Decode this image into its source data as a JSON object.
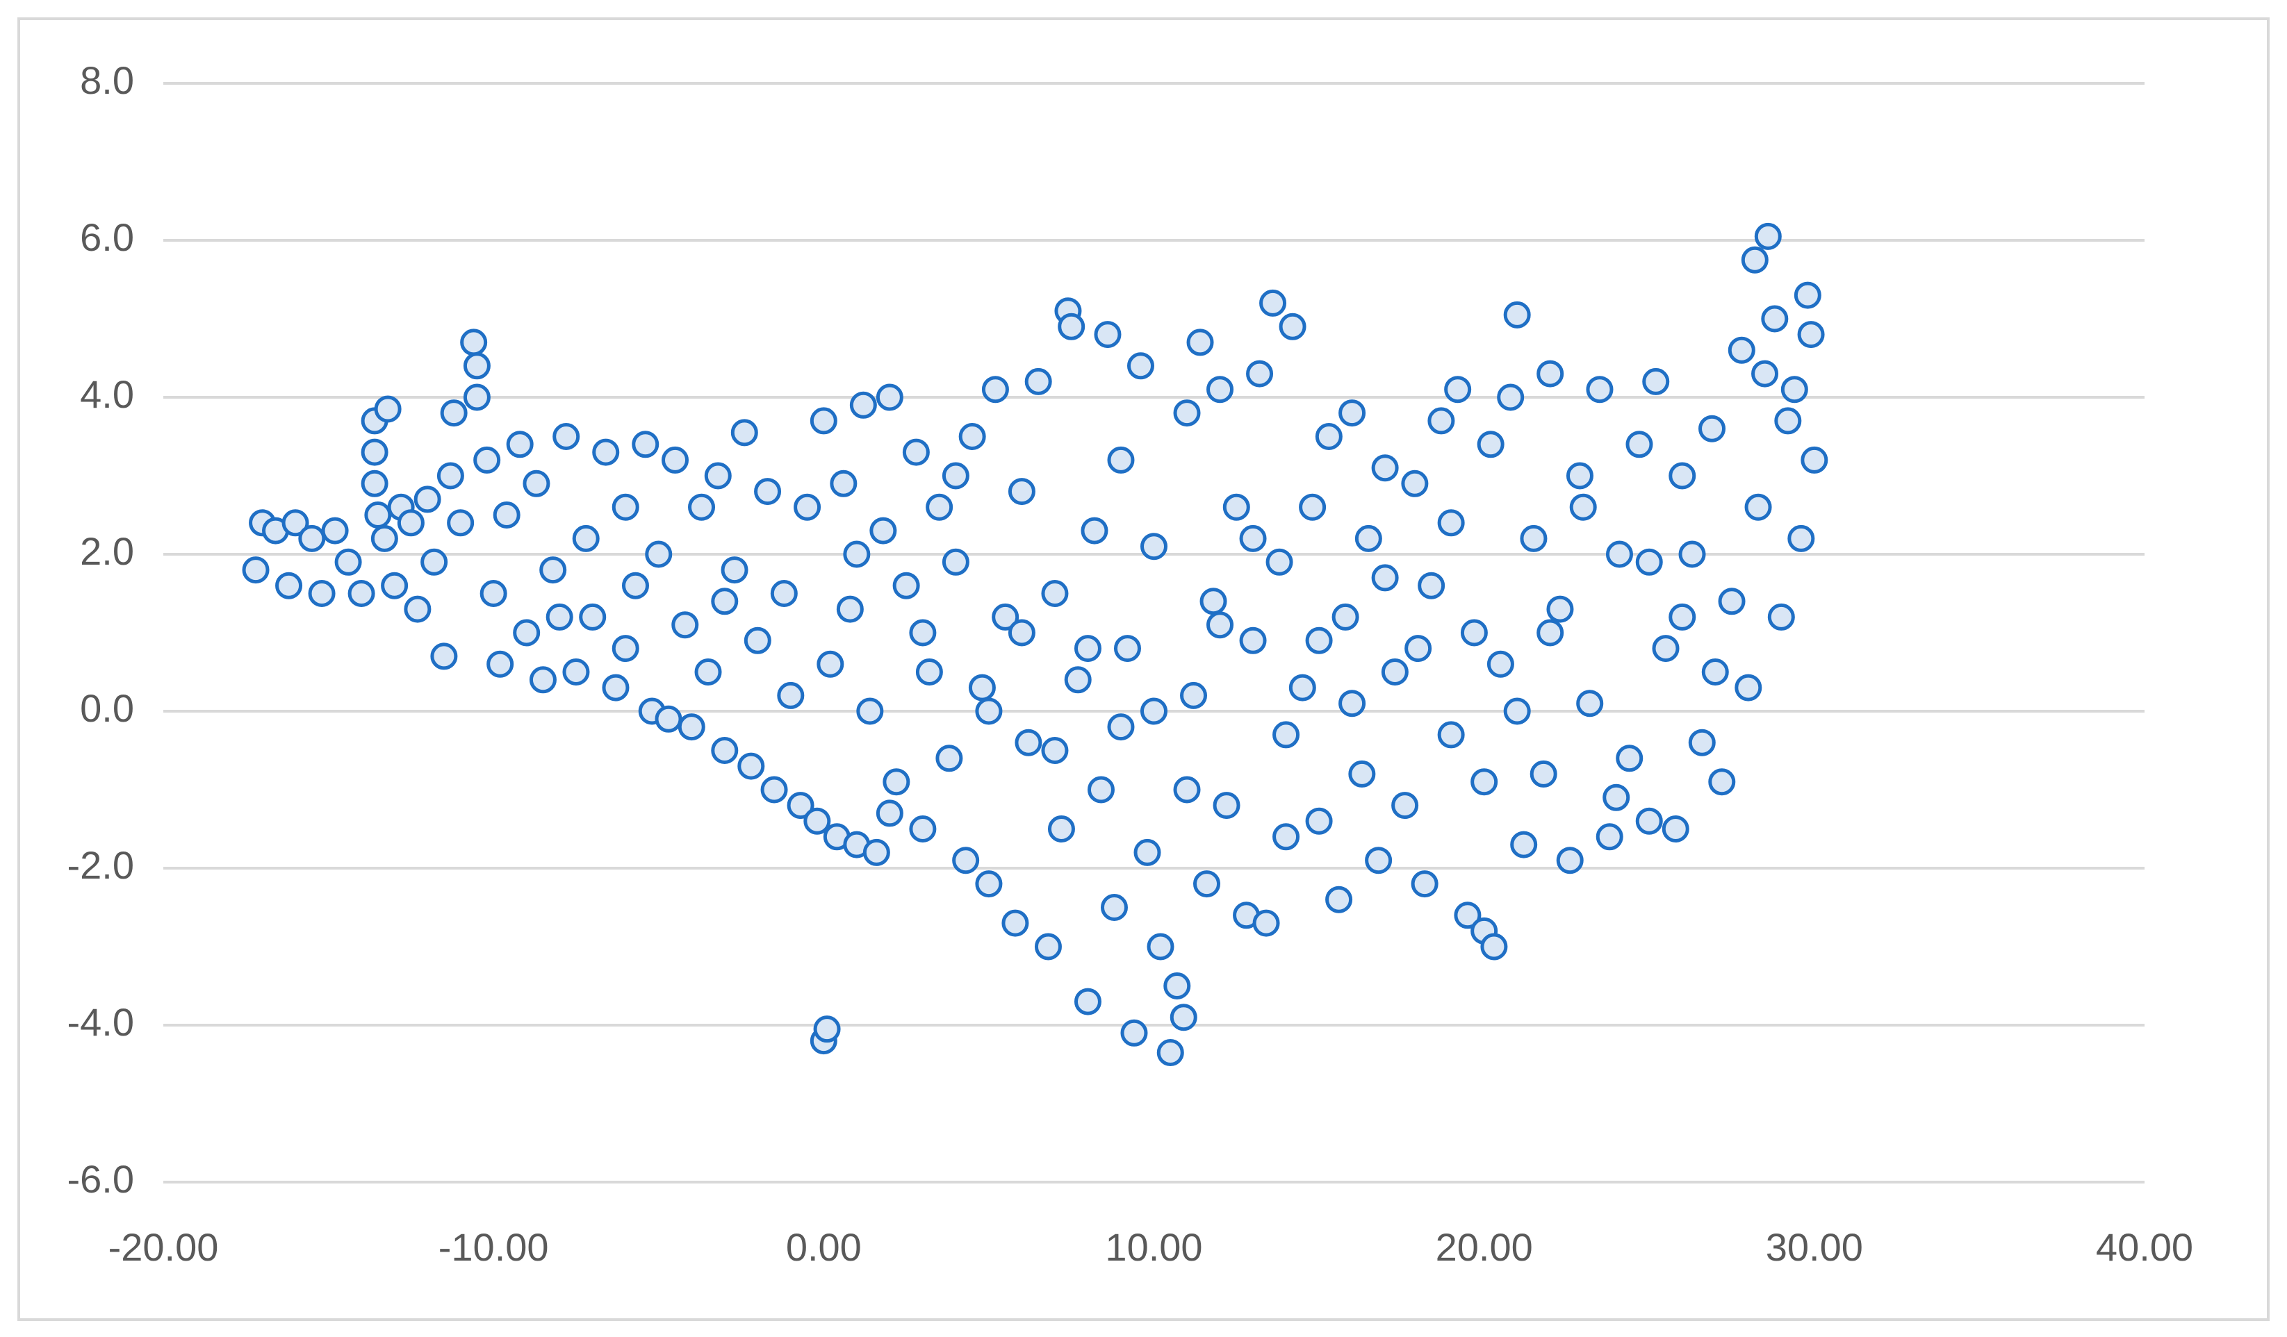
{
  "chart_data": {
    "type": "scatter",
    "x": [
      -17.2,
      -17,
      -16.6,
      -16.2,
      -16,
      -15.5,
      -15.2,
      -14.8,
      -14.4,
      -14,
      -13.6,
      -13.6,
      -13.6,
      -13.5,
      -13.3,
      -13.2,
      -13,
      -12.8,
      -12.5,
      -12.3,
      -12,
      -11.8,
      -11.5,
      -11.3,
      -11.2,
      -11,
      -10.6,
      -10.5,
      -10.5,
      -10.2,
      -10,
      -9.8,
      -9.6,
      -9.2,
      -9,
      -8.7,
      -8.5,
      -8.2,
      -7.8,
      -7.5,
      -7.2,
      -7,
      -6.6,
      -6.3,
      -6,
      -5.7,
      -5.4,
      -5.2,
      -5,
      -4.7,
      -4.5,
      -4.2,
      -4,
      -3.7,
      -3.5,
      -3.2,
      -3,
      -2.7,
      -2.4,
      -2.2,
      -2,
      -1.7,
      -1.5,
      -1.2,
      -1,
      -0.7,
      -0.5,
      -0.2,
      0,
      0,
      0.1,
      0.2,
      0.4,
      0.6,
      0.8,
      1,
      1.2,
      1.4,
      1.6,
      1.8,
      2,
      2.2,
      2.5,
      2.8,
      3,
      3.2,
      3.5,
      3.8,
      4,
      4.3,
      4.5,
      4.8,
      5,
      5.2,
      5.5,
      5.8,
      6,
      6.2,
      6.5,
      6.8,
      7,
      7.2,
      7.4,
      7.5,
      7.7,
      8,
      8.2,
      8.4,
      8.6,
      8.8,
      9,
      9.2,
      9.4,
      9.6,
      9.8,
      10,
      10.2,
      10.5,
      10.7,
      10.9,
      11,
      11.2,
      11.4,
      11.6,
      11.8,
      12,
      12.2,
      12.5,
      12.8,
      13,
      13.2,
      13.4,
      13.6,
      13.8,
      14,
      14.2,
      14.5,
      14.8,
      15,
      15.3,
      15.6,
      15.8,
      16,
      16.3,
      16.5,
      16.8,
      17,
      17.3,
      17.6,
      17.9,
      18.2,
      18.4,
      18.7,
      19,
      19.2,
      19.5,
      19.7,
      20,
      20.2,
      20.3,
      20.5,
      20.8,
      21,
      21.2,
      21.5,
      21.8,
      22,
      22.3,
      22.6,
      22.9,
      23.2,
      23.5,
      23.8,
      24.1,
      24.4,
      24.7,
      25,
      25.2,
      25.5,
      25.8,
      26,
      26.3,
      26.6,
      26.9,
      27.2,
      27.5,
      27.8,
      28,
      28.2,
      28.3,
      28.5,
      28.6,
      28.8,
      29,
      29.2,
      29.4,
      29.6,
      29.8,
      29.9,
      30,
      1,
      3,
      5,
      7,
      9,
      11,
      13,
      15,
      17,
      19,
      21,
      23,
      25,
      27,
      2,
      4,
      6,
      8,
      10,
      12,
      14,
      16,
      18,
      20,
      22,
      24,
      26,
      -8,
      -6,
      -3
    ],
    "values": [
      1.8,
      2.4,
      2.3,
      1.6,
      2.4,
      2.2,
      1.5,
      2.3,
      1.9,
      1.5,
      3.7,
      3.3,
      2.9,
      2.5,
      2.2,
      3.85,
      1.6,
      2.6,
      2.4,
      1.3,
      2.7,
      1.9,
      0.7,
      3.0,
      3.8,
      2.4,
      4.7,
      4.4,
      4.0,
      3.2,
      1.5,
      0.6,
      2.5,
      3.4,
      1.0,
      2.9,
      0.4,
      1.8,
      3.5,
      0.5,
      2.2,
      1.2,
      3.3,
      0.3,
      2.6,
      1.6,
      3.4,
      0.0,
      2.0,
      -0.1,
      3.2,
      1.1,
      -0.2,
      2.6,
      0.5,
      3.0,
      -0.5,
      1.8,
      3.55,
      -0.7,
      0.9,
      2.8,
      -1.0,
      1.5,
      0.2,
      -1.2,
      2.6,
      -1.4,
      3.7,
      -4.2,
      -4.05,
      0.6,
      -1.6,
      2.9,
      1.3,
      -1.7,
      3.9,
      0.0,
      -1.8,
      2.3,
      4.0,
      -0.9,
      1.6,
      3.3,
      -1.5,
      0.5,
      2.6,
      -0.6,
      1.9,
      -1.9,
      3.5,
      0.3,
      -2.2,
      4.1,
      1.2,
      -2.7,
      2.8,
      -0.4,
      4.2,
      -3.0,
      1.5,
      -1.5,
      5.1,
      4.9,
      0.4,
      -3.7,
      2.3,
      -1.0,
      4.8,
      -2.5,
      3.2,
      0.8,
      -4.1,
      4.4,
      -1.8,
      2.1,
      -3.0,
      -4.35,
      -3.5,
      -3.9,
      3.8,
      0.2,
      4.7,
      -2.2,
      1.4,
      4.1,
      -1.2,
      2.6,
      -2.6,
      0.9,
      4.3,
      -2.7,
      5.2,
      1.9,
      -1.6,
      4.9,
      0.3,
      2.6,
      -1.4,
      3.5,
      -2.4,
      1.2,
      3.8,
      -0.8,
      2.2,
      -1.9,
      3.1,
      0.5,
      -1.2,
      2.9,
      -2.2,
      1.6,
      3.7,
      -0.3,
      4.1,
      -2.6,
      1.0,
      -2.8,
      3.4,
      -3.0,
      0.6,
      4.0,
      5.05,
      -1.7,
      2.2,
      -0.8,
      4.3,
      1.3,
      -1.9,
      3.0,
      0.1,
      4.1,
      -1.6,
      2.0,
      -0.6,
      3.4,
      -1.4,
      4.2,
      0.8,
      -1.5,
      3.0,
      2.0,
      -0.4,
      3.6,
      -0.9,
      1.4,
      4.6,
      0.3,
      5.75,
      2.6,
      4.3,
      6.05,
      5.0,
      1.2,
      3.7,
      4.1,
      2.2,
      5.3,
      4.8,
      3.2,
      2.0,
      1.0,
      0.0,
      -0.5,
      -0.2,
      -1.0,
      2.2,
      0.9,
      1.7,
      2.4,
      0.0,
      2.6,
      1.9,
      0.5,
      -1.3,
      3.0,
      1.0,
      0.8,
      0.0,
      1.1,
      -0.3,
      0.1,
      0.8,
      -0.9,
      1.0,
      -1.1,
      1.2,
      1.2,
      0.8,
      1.4
    ],
    "color": "#1f6fc5",
    "marker_fill": "#d9e6f5",
    "xlim": [
      -20,
      40
    ],
    "xticks": [
      {
        "value": -20,
        "label": "-20.00"
      },
      {
        "value": -10,
        "label": "-10.00"
      },
      {
        "value": 0,
        "label": "0.00"
      },
      {
        "value": 10,
        "label": "10.00"
      },
      {
        "value": 20,
        "label": "20.00"
      },
      {
        "value": 30,
        "label": "30.00"
      },
      {
        "value": 40,
        "label": "40.00"
      }
    ],
    "ylim": [
      -6,
      8
    ],
    "yticks": [
      {
        "value": -6,
        "label": "-6.0"
      },
      {
        "value": -4,
        "label": "-4.0"
      },
      {
        "value": -2,
        "label": "-2.0"
      },
      {
        "value": 0,
        "label": "0.0"
      },
      {
        "value": 2,
        "label": "2.0"
      },
      {
        "value": 4,
        "label": "4.0"
      },
      {
        "value": 6,
        "label": "6.0"
      },
      {
        "value": 8,
        "label": "8.0"
      }
    ],
    "grid": true
  }
}
